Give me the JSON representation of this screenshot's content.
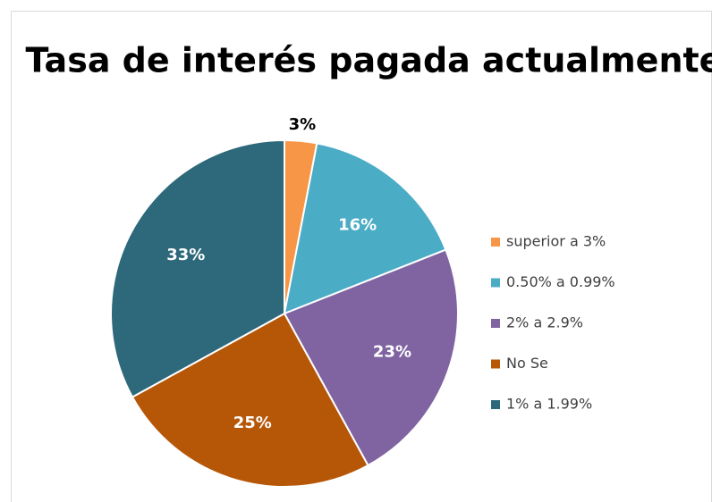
{
  "chart_data": {
    "type": "pie",
    "title": "Tasa de interés pagada actualmente",
    "categories": [
      "superior a 3%",
      "0.50% a 0.99%",
      "2% a 2.9%",
      "No Se",
      "1% a 1.99%"
    ],
    "values": [
      3,
      16,
      23,
      25,
      33
    ],
    "value_labels": [
      "3%",
      "16%",
      "23%",
      "25%",
      "33%"
    ],
    "colors": [
      "#f79646",
      "#4bacc6",
      "#8064a2",
      "#b65708",
      "#2d687b"
    ],
    "legend": "right"
  }
}
